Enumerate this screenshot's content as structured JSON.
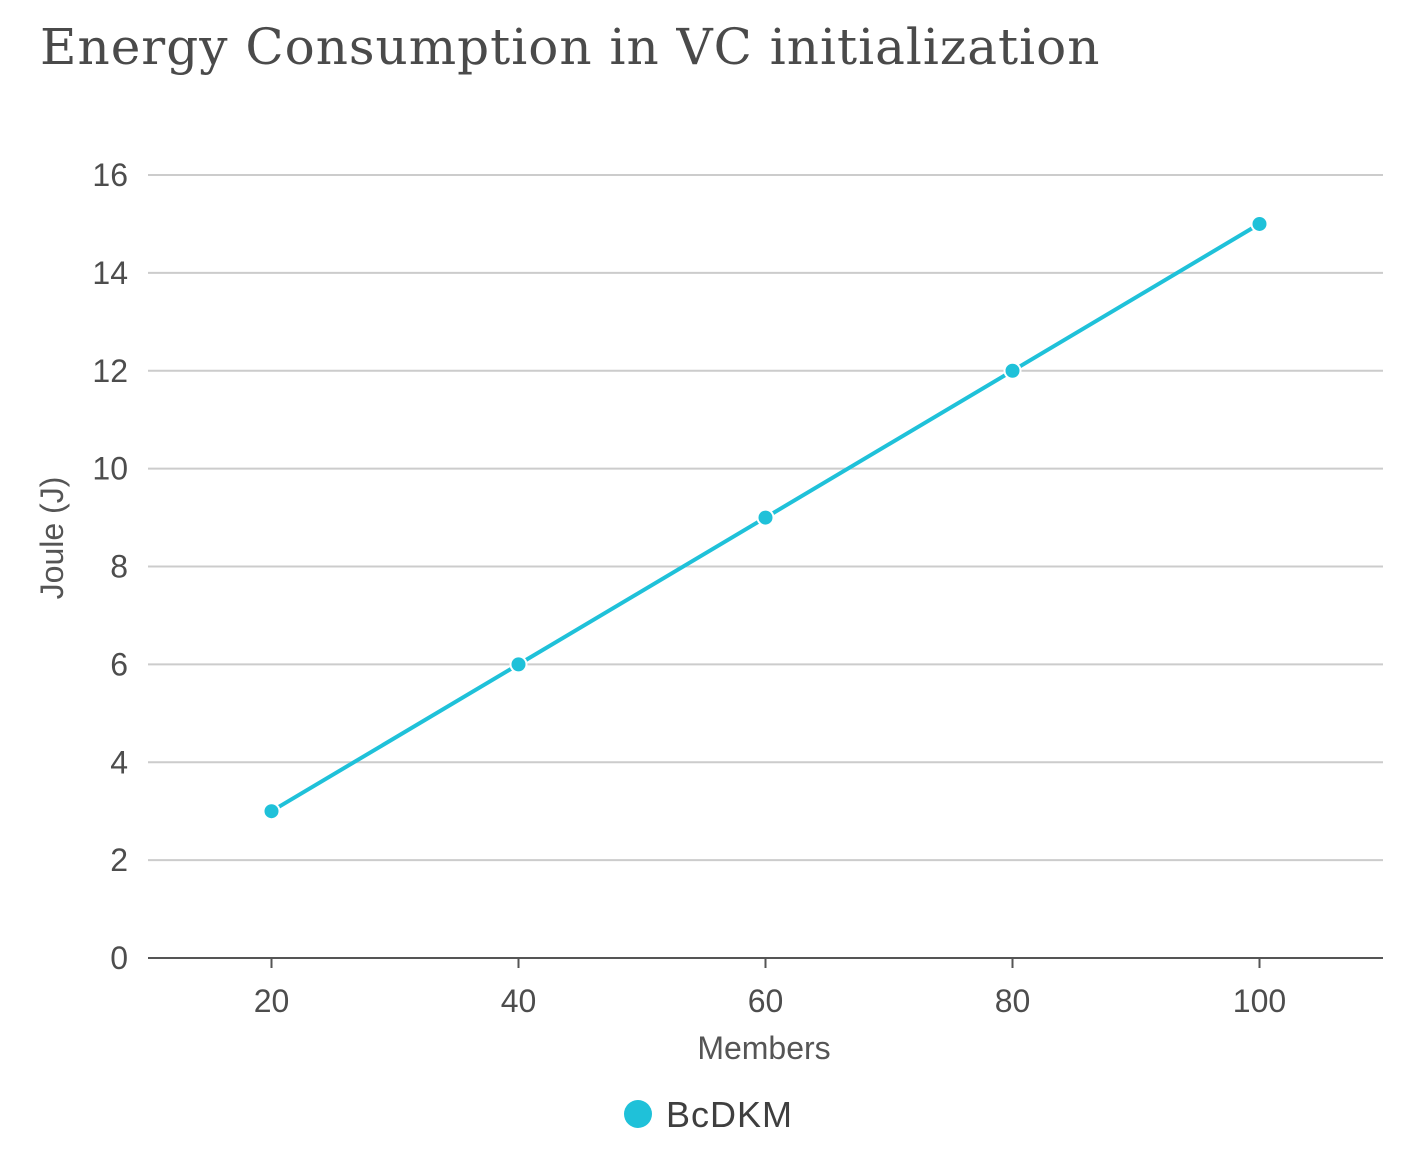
{
  "chart_data": {
    "type": "line",
    "title": "Energy Consumption in VC initialization",
    "xlabel": "Members",
    "ylabel": "Joule (J)",
    "x": [
      20,
      40,
      60,
      80,
      100
    ],
    "xticks": [
      "20",
      "40",
      "60",
      "80",
      "100"
    ],
    "xlim": [
      10,
      110
    ],
    "yticks": [
      "0",
      "2",
      "4",
      "6",
      "8",
      "10",
      "12",
      "14",
      "16"
    ],
    "ylim": [
      0,
      16
    ],
    "grid": true,
    "legend_position": "bottom-center",
    "series": [
      {
        "name": "BcDKM",
        "color": "#1fc1d9",
        "values": [
          3,
          6,
          9,
          12,
          15
        ]
      }
    ]
  }
}
